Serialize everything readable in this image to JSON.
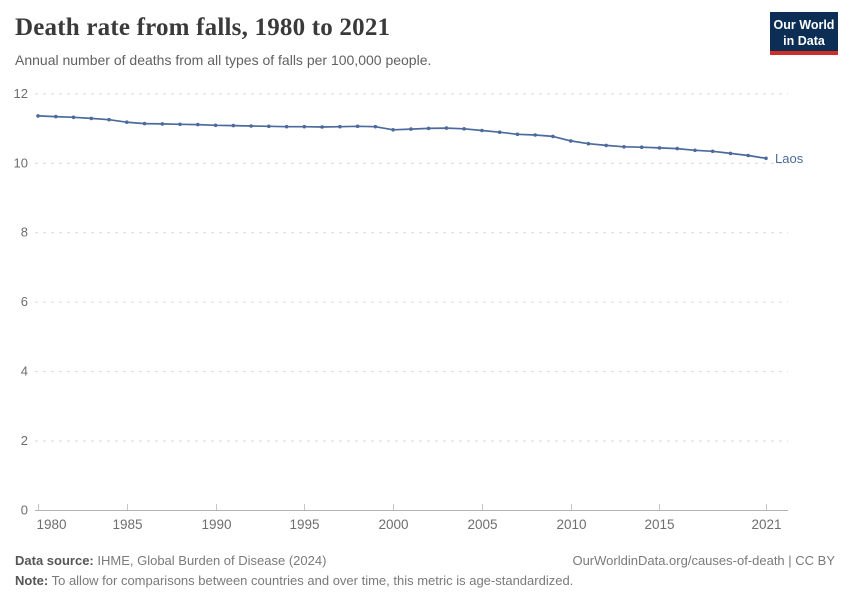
{
  "header": {
    "title": "Death rate from falls, 1980 to 2021",
    "subtitle": "Annual number of deaths from all types of falls per 100,000 people.",
    "logo": {
      "line1": "Our World",
      "line2": "in Data",
      "bg_color": "#0d2e54",
      "accent_color": "#cf2e28"
    }
  },
  "chart_data": {
    "type": "line",
    "title": "Death rate from falls, 1980 to 2021",
    "xlabel": "",
    "ylabel": "",
    "xlim": [
      1980,
      2021
    ],
    "ylim": [
      0,
      12
    ],
    "grid": "horizontal-dashed",
    "legend_position": "end-of-line",
    "x_ticks": [
      1980,
      1985,
      1990,
      1995,
      2000,
      2005,
      2010,
      2015,
      2021
    ],
    "y_ticks": [
      0,
      2,
      4,
      6,
      8,
      10,
      12
    ],
    "series": [
      {
        "name": "Laos",
        "color": "#4c6a9c",
        "x": [
          1980,
          1981,
          1982,
          1983,
          1984,
          1985,
          1986,
          1987,
          1988,
          1989,
          1990,
          1991,
          1992,
          1993,
          1994,
          1995,
          1996,
          1997,
          1998,
          1999,
          2000,
          2001,
          2002,
          2003,
          2004,
          2005,
          2006,
          2007,
          2008,
          2009,
          2010,
          2011,
          2012,
          2013,
          2014,
          2015,
          2016,
          2017,
          2018,
          2019,
          2020,
          2021
        ],
        "values": [
          11.35,
          11.33,
          11.31,
          11.28,
          11.24,
          11.17,
          11.13,
          11.12,
          11.11,
          11.1,
          11.08,
          11.07,
          11.06,
          11.05,
          11.04,
          11.04,
          11.03,
          11.04,
          11.05,
          11.04,
          10.95,
          10.97,
          10.99,
          11.0,
          10.98,
          10.93,
          10.88,
          10.82,
          10.8,
          10.76,
          10.63,
          10.55,
          10.5,
          10.46,
          10.45,
          10.43,
          10.41,
          10.36,
          10.33,
          10.27,
          10.21,
          10.13
        ]
      }
    ],
    "colors": {
      "gridline": "#d9d9d9",
      "axis": "#b3b3b3",
      "tick": "#c4c4c4",
      "tick_label": "#6e6e6e"
    }
  },
  "footer": {
    "source_label": "Data source:",
    "source_text": " IHME, Global Burden of Disease (2024)",
    "link_text": "OurWorldinData.org/causes-of-death | CC BY",
    "note_label": "Note:",
    "note_text": " To allow for comparisons between countries and over time, this metric is age-standardized."
  }
}
